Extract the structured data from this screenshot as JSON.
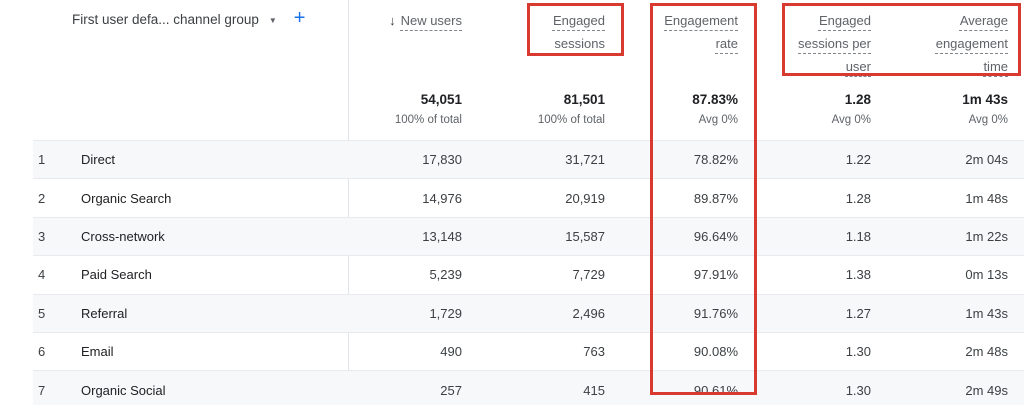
{
  "header": {
    "dimension_label": "First user defa... channel group",
    "caret_icon": "▼",
    "add_icon": "+",
    "sort_icon": "↓"
  },
  "columns": [
    {
      "label": "New users",
      "total": "54,051",
      "total_sub": "100% of total",
      "sorted_desc": true
    },
    {
      "label": "Engaged sessions",
      "total": "81,501",
      "total_sub": "100% of total"
    },
    {
      "label": "Engagement rate",
      "total": "87.83%",
      "total_sub": "Avg 0%"
    },
    {
      "label": "Engaged sessions per user",
      "total": "1.28",
      "total_sub": "Avg 0%"
    },
    {
      "label": "Average engagement time",
      "total": "1m 43s",
      "total_sub": "Avg 0%"
    }
  ],
  "rows": [
    {
      "index": "1",
      "channel": "Direct",
      "values": [
        "17,830",
        "31,721",
        "78.82%",
        "1.22",
        "2m 04s"
      ]
    },
    {
      "index": "2",
      "channel": "Organic Search",
      "values": [
        "14,976",
        "20,919",
        "89.87%",
        "1.28",
        "1m 48s"
      ]
    },
    {
      "index": "3",
      "channel": "Cross-network",
      "values": [
        "13,148",
        "15,587",
        "96.64%",
        "1.18",
        "1m 22s"
      ]
    },
    {
      "index": "4",
      "channel": "Paid Search",
      "values": [
        "5,239",
        "7,729",
        "97.91%",
        "1.38",
        "0m 13s"
      ]
    },
    {
      "index": "5",
      "channel": "Referral",
      "values": [
        "1,729",
        "2,496",
        "91.76%",
        "1.27",
        "1m 43s"
      ]
    },
    {
      "index": "6",
      "channel": "Email",
      "values": [
        "490",
        "763",
        "90.08%",
        "1.30",
        "2m 48s"
      ]
    },
    {
      "index": "7",
      "channel": "Organic Social",
      "values": [
        "257",
        "415",
        "90.61%",
        "1.30",
        "2m 49s"
      ]
    }
  ],
  "annotations": {
    "highlight_color": "#d93a2f",
    "highlighted_regions": [
      "engaged-sessions-header",
      "engagement-rate-column",
      "engaged-sessions-per-user-and-average-engagement-time-headers"
    ]
  },
  "colors": {
    "accent_blue": "#1a73e8",
    "row_alt_background": "#f7f8fa",
    "header_text": "#5f6368",
    "body_text": "#3c4043"
  }
}
